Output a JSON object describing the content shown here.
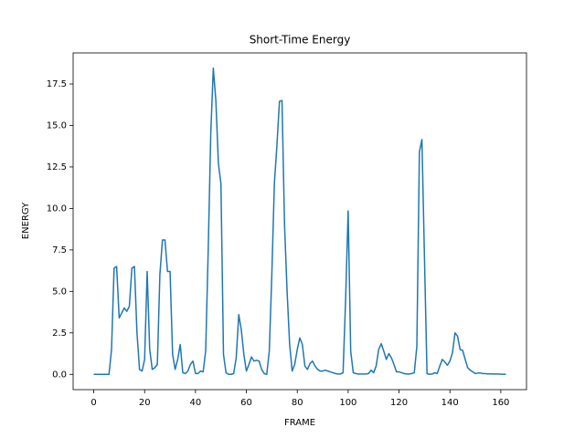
{
  "chart_data": {
    "type": "line",
    "title": "Short-Time Energy",
    "x_label": "FRAME",
    "y_label": "ENERGY",
    "color": "#1f77b4",
    "grid": false,
    "x": [
      0,
      1,
      2,
      3,
      4,
      5,
      6,
      7,
      8,
      9,
      10,
      11,
      12,
      13,
      14,
      15,
      16,
      17,
      18,
      19,
      20,
      21,
      22,
      23,
      24,
      25,
      26,
      27,
      28,
      29,
      30,
      31,
      32,
      33,
      34,
      35,
      36,
      37,
      38,
      39,
      40,
      41,
      42,
      43,
      44,
      45,
      46,
      47,
      48,
      49,
      50,
      51,
      52,
      53,
      54,
      55,
      56,
      57,
      58,
      59,
      60,
      61,
      62,
      63,
      64,
      65,
      66,
      67,
      68,
      69,
      70,
      71,
      72,
      73,
      74,
      75,
      76,
      77,
      78,
      79,
      80,
      81,
      82,
      83,
      84,
      85,
      86,
      87,
      88,
      89,
      90,
      91,
      92,
      93,
      94,
      95,
      96,
      97,
      98,
      99,
      100,
      101,
      102,
      103,
      104,
      105,
      106,
      107,
      108,
      109,
      110,
      111,
      112,
      113,
      114,
      115,
      116,
      117,
      118,
      119,
      120,
      121,
      122,
      123,
      124,
      125,
      126,
      127,
      128,
      129,
      130,
      131,
      132,
      133,
      134,
      135,
      136,
      137,
      138,
      139,
      140,
      141,
      142,
      143,
      144,
      145,
      146,
      147,
      148,
      149,
      150,
      151,
      152,
      153,
      154,
      155,
      156,
      157,
      158,
      159,
      160,
      161,
      162
    ],
    "values": [
      0,
      0,
      0,
      0,
      0,
      0,
      0,
      1.5,
      6.4,
      6.5,
      3.4,
      3.7,
      4.0,
      3.8,
      4.1,
      6.4,
      6.5,
      2.5,
      0.3,
      0.2,
      0.9,
      6.2,
      1.5,
      0.3,
      0.4,
      0.6,
      6.0,
      8.1,
      8.1,
      6.2,
      6.2,
      1.2,
      0.3,
      0.9,
      1.8,
      0.1,
      0.05,
      0.2,
      0.6,
      0.8,
      0.05,
      0.05,
      0.2,
      0.15,
      1.4,
      7.5,
      14.5,
      18.45,
      16.5,
      12.7,
      11.5,
      1.2,
      0.1,
      0.0,
      0.0,
      0.05,
      1.0,
      3.6,
      2.7,
      1.2,
      0.2,
      0.6,
      1.05,
      0.8,
      0.85,
      0.8,
      0.3,
      0.05,
      0.0,
      1.4,
      6.0,
      11.5,
      13.8,
      16.45,
      16.5,
      9.0,
      5.0,
      1.8,
      0.2,
      0.6,
      1.5,
      2.2,
      1.8,
      0.5,
      0.3,
      0.65,
      0.8,
      0.5,
      0.3,
      0.2,
      0.2,
      0.25,
      0.2,
      0.15,
      0.1,
      0.05,
      0.02,
      0.02,
      0.1,
      4.5,
      9.85,
      1.4,
      0.1,
      0.05,
      0.02,
      0.02,
      0.02,
      0.02,
      0.05,
      0.25,
      0.1,
      0.5,
      1.5,
      1.85,
      1.4,
      0.9,
      1.25,
      1.0,
      0.6,
      0.15,
      0.15,
      0.1,
      0.05,
      0.02,
      0.02,
      0.05,
      0.1,
      1.7,
      13.4,
      14.15,
      7.0,
      0.05,
      0.0,
      0.02,
      0.1,
      0.05,
      0.5,
      0.9,
      0.75,
      0.55,
      0.8,
      1.3,
      2.5,
      2.3,
      1.5,
      1.45,
      0.9,
      0.4,
      0.25,
      0.15,
      0.05,
      0.08,
      0.08,
      0.05,
      0.04,
      0.03,
      0.03,
      0.02,
      0.02,
      0.02,
      0.01,
      0.01,
      0.01
    ],
    "xlim": [
      -8.1,
      170.1
    ],
    "xticks": [
      0,
      20,
      40,
      60,
      80,
      100,
      120,
      140,
      160
    ],
    "ylim": [
      -0.92,
      19.37
    ],
    "yticks": [
      {
        "value": 0,
        "label": "0.0"
      },
      2.5,
      {
        "value": 5,
        "label": "5.0"
      },
      7.5,
      {
        "value": 10,
        "label": "10.0"
      },
      12.5,
      {
        "value": 15,
        "label": "15.0"
      },
      17.5
    ]
  }
}
